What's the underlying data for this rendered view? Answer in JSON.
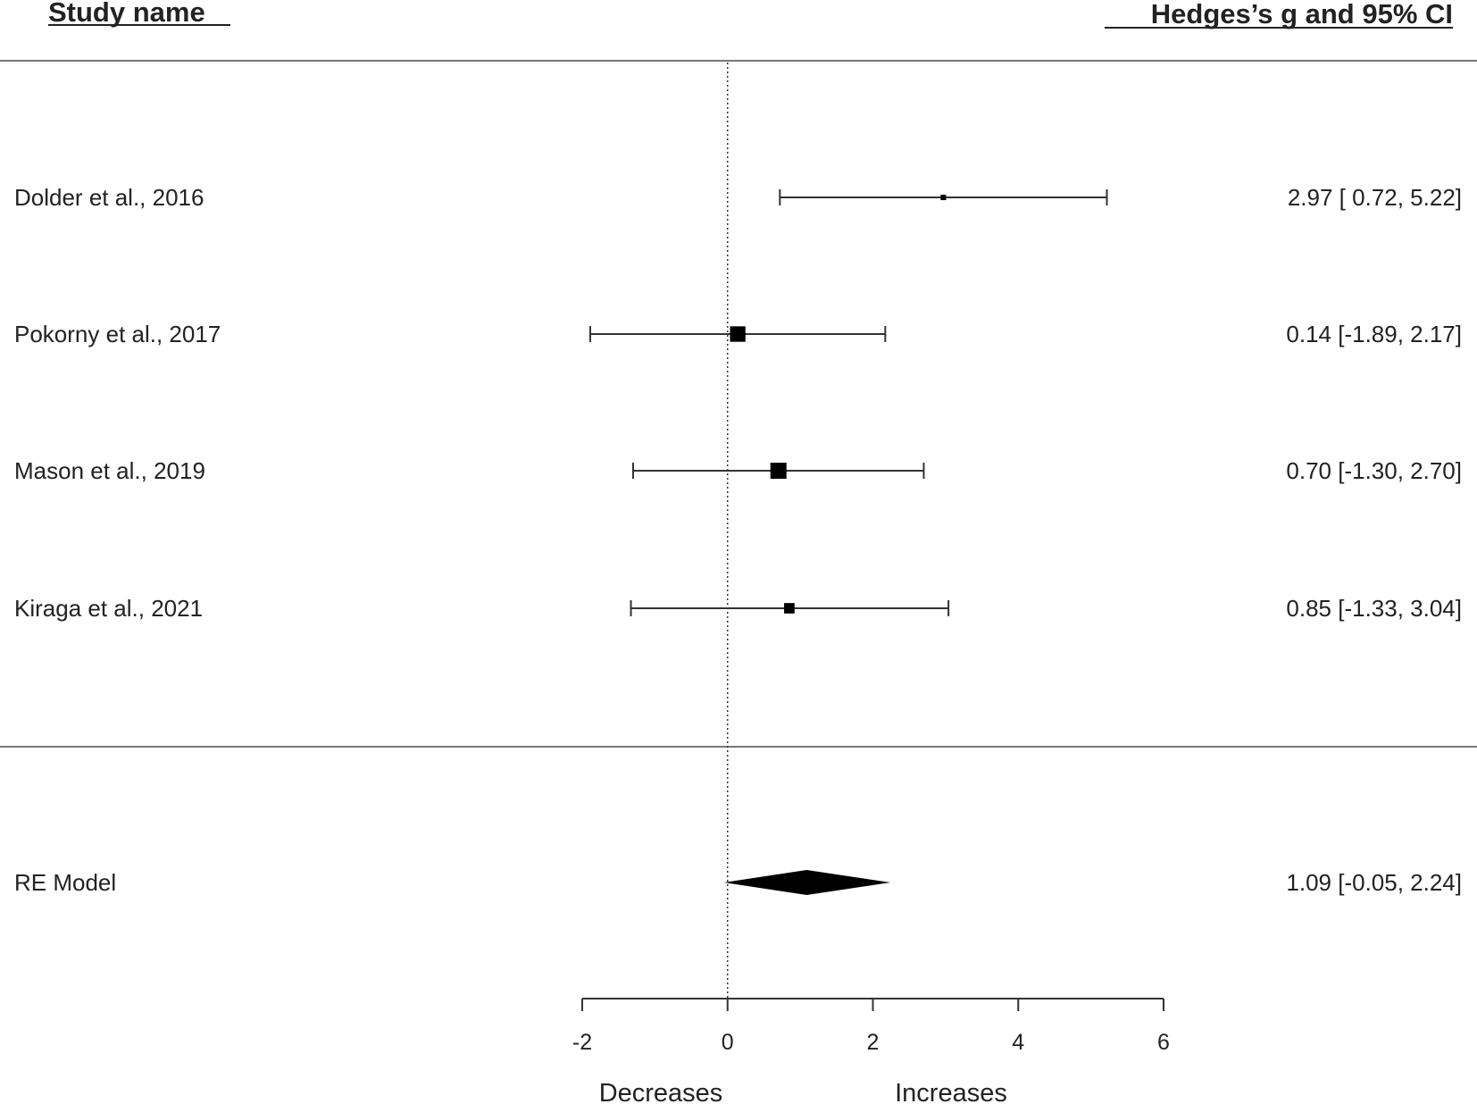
{
  "chart_data": {
    "type": "forest",
    "headers": {
      "left": "Study name",
      "right": "Hedges’s g and 95% CI"
    },
    "studies": [
      {
        "name": "Dolder et al., 2016",
        "estimate": 2.97,
        "ci_low": 0.72,
        "ci_high": 5.22,
        "annotation": "2.97 [ 0.72, 5.22]",
        "weight": 0.15
      },
      {
        "name": "Pokorny et al., 2017",
        "estimate": 0.14,
        "ci_low": -1.89,
        "ci_high": 2.17,
        "annotation": "0.14 [-1.89, 2.17]",
        "weight": 0.95
      },
      {
        "name": "Mason et al., 2019",
        "estimate": 0.7,
        "ci_low": -1.3,
        "ci_high": 2.7,
        "annotation": "0.70 [-1.30, 2.70]",
        "weight": 1.0
      },
      {
        "name": "Kiraga et al., 2021",
        "estimate": 0.85,
        "ci_low": -1.33,
        "ci_high": 3.04,
        "annotation": "0.85 [-1.33, 3.04]",
        "weight": 0.55
      }
    ],
    "summary": {
      "name": "RE Model",
      "estimate": 1.09,
      "ci_low": -0.05,
      "ci_high": 2.24,
      "annotation": "1.09 [-0.05, 2.24]"
    },
    "xlim": [
      -2,
      6
    ],
    "xticks": [
      -2,
      0,
      2,
      4,
      6
    ],
    "xtick_labels": [
      "-2",
      "0",
      "2",
      "4",
      "6"
    ],
    "reference_line": 0,
    "direction_labels": {
      "left": "Decreases",
      "right": "Increases"
    }
  }
}
